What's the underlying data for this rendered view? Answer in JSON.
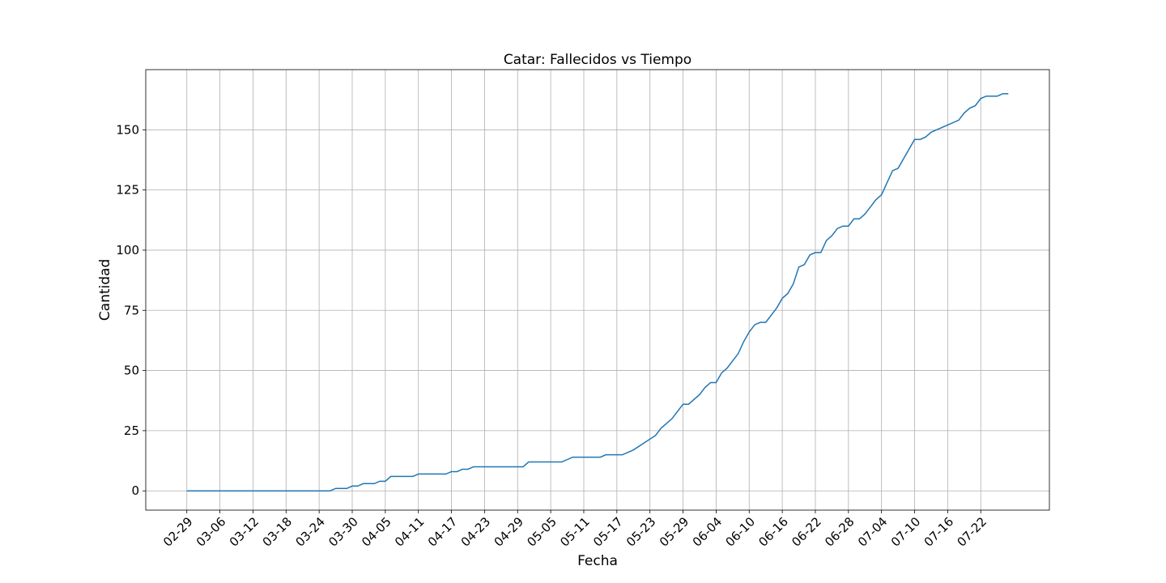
{
  "chart_data": {
    "type": "line",
    "title": "Catar: Fallecidos vs Tiempo",
    "xlabel": "Fecha",
    "ylabel": "Cantidad",
    "grid": true,
    "x_tick_labels": [
      "02-29",
      "03-06",
      "03-12",
      "03-18",
      "03-24",
      "03-30",
      "04-05",
      "04-11",
      "04-17",
      "04-23",
      "04-29",
      "05-05",
      "05-11",
      "05-17",
      "05-23",
      "05-29",
      "06-04",
      "06-10",
      "06-16",
      "06-22",
      "06-28",
      "07-04",
      "07-10",
      "07-16",
      "07-22"
    ],
    "y_ticks": [
      0,
      25,
      50,
      75,
      100,
      125,
      150
    ],
    "ylim": [
      -8,
      175
    ],
    "x_start": "2020-02-29",
    "x_end": "2020-07-27",
    "series": [
      {
        "color": "#1f77b4",
        "points": [
          [
            "2020-02-29",
            0
          ],
          [
            "2020-03-26",
            0
          ],
          [
            "2020-03-27",
            1
          ],
          [
            "2020-03-29",
            1
          ],
          [
            "2020-03-30",
            2
          ],
          [
            "2020-03-31",
            2
          ],
          [
            "2020-04-01",
            3
          ],
          [
            "2020-04-03",
            3
          ],
          [
            "2020-04-04",
            4
          ],
          [
            "2020-04-05",
            4
          ],
          [
            "2020-04-06",
            6
          ],
          [
            "2020-04-10",
            6
          ],
          [
            "2020-04-11",
            7
          ],
          [
            "2020-04-16",
            7
          ],
          [
            "2020-04-17",
            8
          ],
          [
            "2020-04-18",
            8
          ],
          [
            "2020-04-19",
            9
          ],
          [
            "2020-04-20",
            9
          ],
          [
            "2020-04-21",
            10
          ],
          [
            "2020-04-30",
            10
          ],
          [
            "2020-05-01",
            12
          ],
          [
            "2020-05-07",
            12
          ],
          [
            "2020-05-09",
            14
          ],
          [
            "2020-05-14",
            14
          ],
          [
            "2020-05-15",
            15
          ],
          [
            "2020-05-18",
            15
          ],
          [
            "2020-05-20",
            17
          ],
          [
            "2020-05-22",
            20
          ],
          [
            "2020-05-24",
            23
          ],
          [
            "2020-05-25",
            26
          ],
          [
            "2020-05-27",
            30
          ],
          [
            "2020-05-29",
            36
          ],
          [
            "2020-05-30",
            36
          ],
          [
            "2020-06-01",
            40
          ],
          [
            "2020-06-02",
            43
          ],
          [
            "2020-06-03",
            45
          ],
          [
            "2020-06-04",
            45
          ],
          [
            "2020-06-05",
            49
          ],
          [
            "2020-06-06",
            51
          ],
          [
            "2020-06-08",
            57
          ],
          [
            "2020-06-09",
            62
          ],
          [
            "2020-06-10",
            66
          ],
          [
            "2020-06-11",
            69
          ],
          [
            "2020-06-12",
            70
          ],
          [
            "2020-06-13",
            70
          ],
          [
            "2020-06-15",
            76
          ],
          [
            "2020-06-16",
            80
          ],
          [
            "2020-06-17",
            82
          ],
          [
            "2020-06-18",
            86
          ],
          [
            "2020-06-19",
            93
          ],
          [
            "2020-06-20",
            94
          ],
          [
            "2020-06-21",
            98
          ],
          [
            "2020-06-22",
            99
          ],
          [
            "2020-06-23",
            99
          ],
          [
            "2020-06-24",
            104
          ],
          [
            "2020-06-25",
            106
          ],
          [
            "2020-06-26",
            109
          ],
          [
            "2020-06-27",
            110
          ],
          [
            "2020-06-28",
            110
          ],
          [
            "2020-06-29",
            113
          ],
          [
            "2020-06-30",
            113
          ],
          [
            "2020-07-01",
            115
          ],
          [
            "2020-07-02",
            118
          ],
          [
            "2020-07-03",
            121
          ],
          [
            "2020-07-04",
            123
          ],
          [
            "2020-07-05",
            128
          ],
          [
            "2020-07-06",
            133
          ],
          [
            "2020-07-07",
            134
          ],
          [
            "2020-07-10",
            146
          ],
          [
            "2020-07-11",
            146
          ],
          [
            "2020-07-12",
            147
          ],
          [
            "2020-07-13",
            149
          ],
          [
            "2020-07-18",
            154
          ],
          [
            "2020-07-19",
            157
          ],
          [
            "2020-07-20",
            159
          ],
          [
            "2020-07-21",
            160
          ],
          [
            "2020-07-22",
            163
          ],
          [
            "2020-07-23",
            164
          ],
          [
            "2020-07-25",
            164
          ],
          [
            "2020-07-26",
            165
          ],
          [
            "2020-07-27",
            165
          ]
        ]
      }
    ]
  }
}
